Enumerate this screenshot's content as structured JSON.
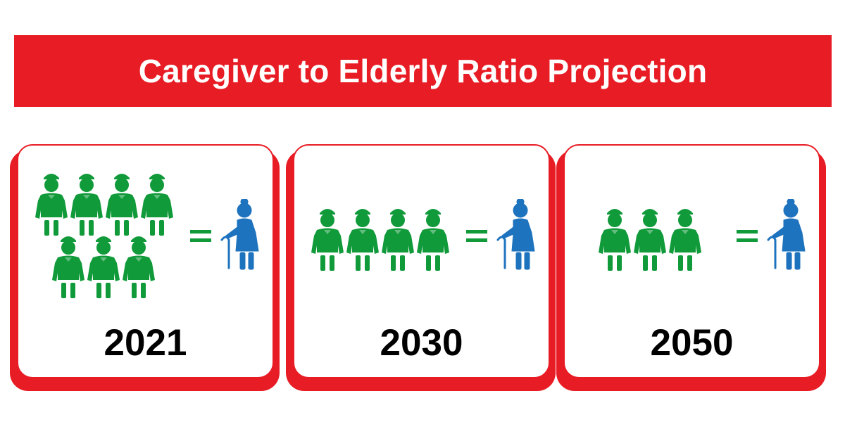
{
  "header": {
    "title": "Caregiver to Elderly Ratio Projection",
    "banner_color": "#e81c24"
  },
  "colors": {
    "caregiver": "#109a3a",
    "elder": "#1e73be",
    "card_border": "#e81c24",
    "card_shadow": "#e81c24"
  },
  "icons": {
    "caregiver": "caregiver-icon",
    "elder": "elderly-person-with-cane-icon",
    "equals": "equals-sign-icon"
  },
  "cards": [
    {
      "year": "2021",
      "caregivers": 7,
      "elders": 1
    },
    {
      "year": "2030",
      "caregivers": 4,
      "elders": 1
    },
    {
      "year": "2050",
      "caregivers": 3,
      "elders": 1
    }
  ]
}
